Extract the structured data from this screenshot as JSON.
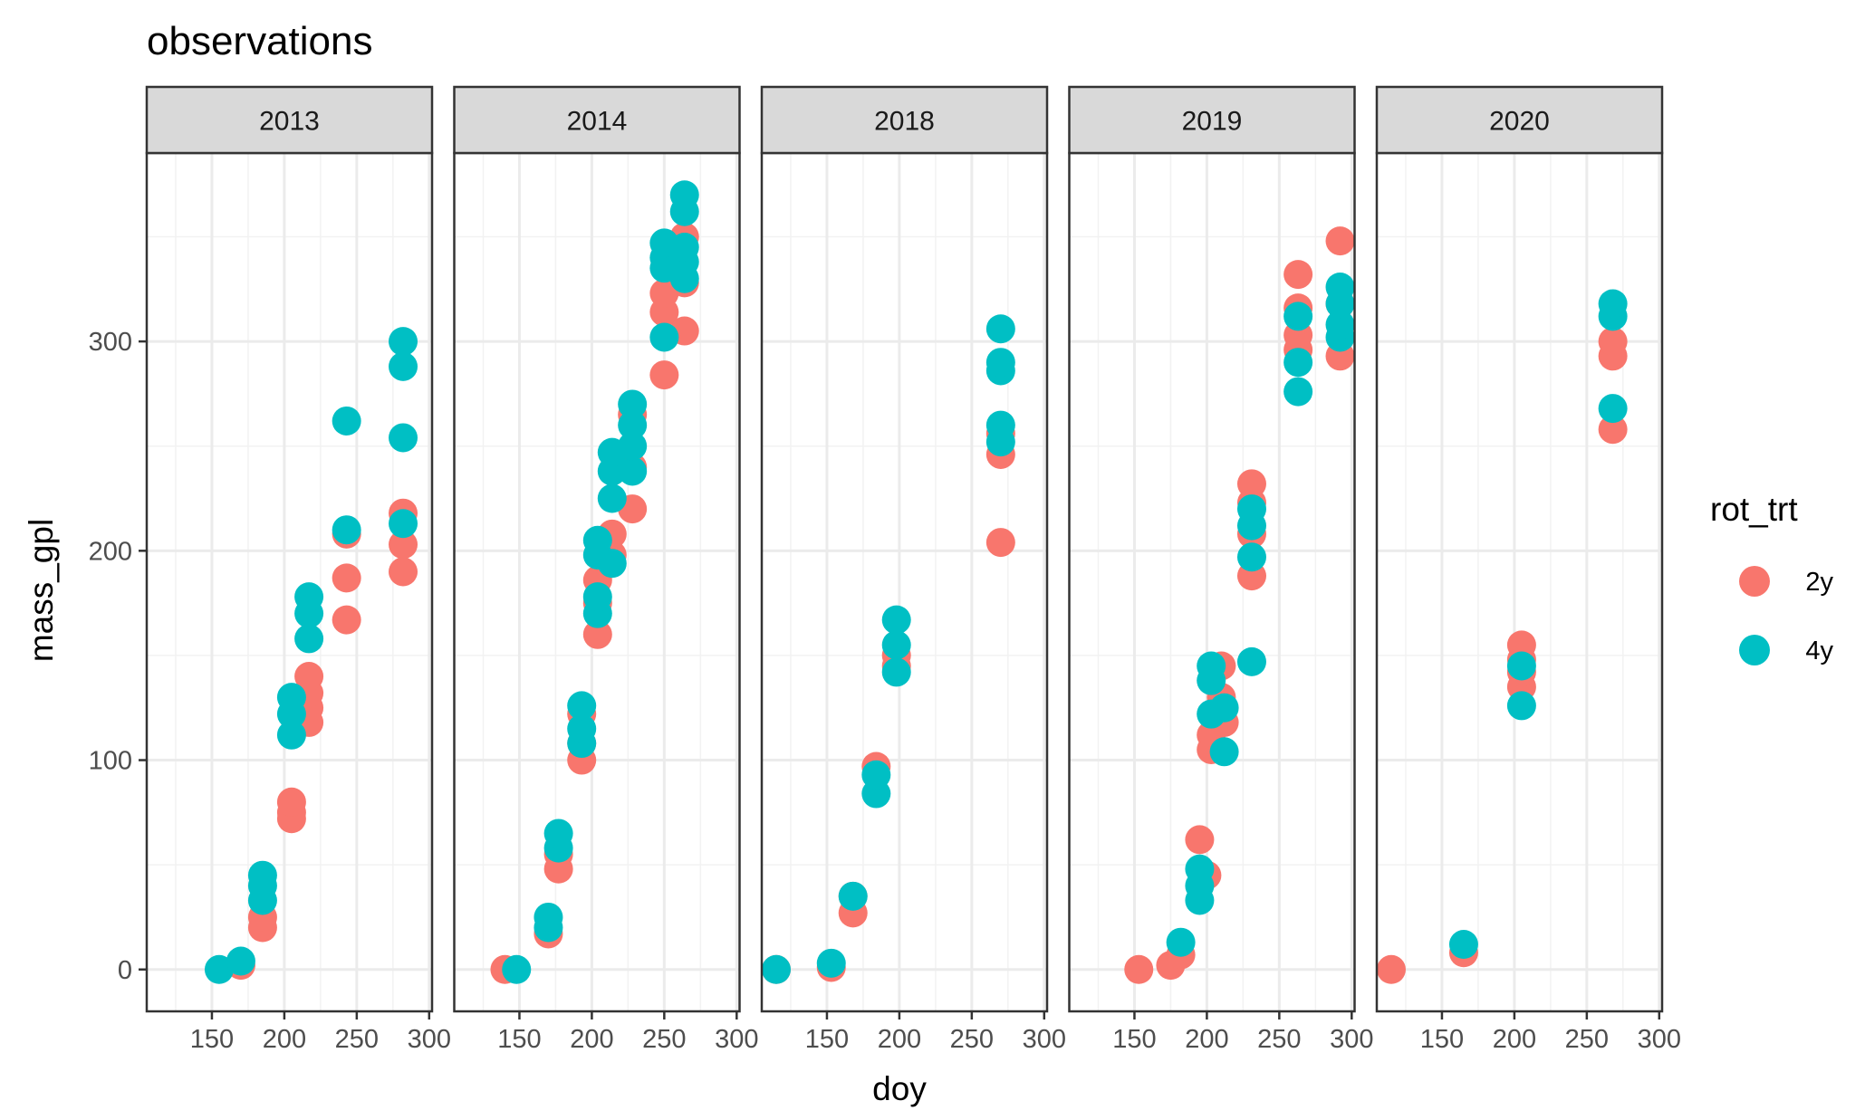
{
  "chart_data": {
    "type": "scatter",
    "title": "observations",
    "xlabel": "doy",
    "ylabel": "mass_gpl",
    "xlim": [
      105,
      302
    ],
    "ylim": [
      -20,
      390
    ],
    "x_ticks": [
      150,
      200,
      250,
      300
    ],
    "y_ticks": [
      0,
      100,
      200,
      300
    ],
    "grid": true,
    "legend": {
      "title": "rot_trt",
      "position": "right",
      "entries": [
        {
          "name": "2y",
          "color": "#F8766D"
        },
        {
          "name": "4y",
          "color": "#00BFC4"
        }
      ]
    },
    "panels": [
      {
        "label": "2013",
        "series": [
          {
            "name": "2y",
            "points": [
              [
                170,
                2
              ],
              [
                185,
                20
              ],
              [
                185,
                25
              ],
              [
                205,
                72
              ],
              [
                205,
                75
              ],
              [
                205,
                80
              ],
              [
                217,
                118
              ],
              [
                217,
                125
              ],
              [
                217,
                132
              ],
              [
                217,
                140
              ],
              [
                243,
                167
              ],
              [
                243,
                187
              ],
              [
                243,
                208
              ],
              [
                282,
                190
              ],
              [
                282,
                203
              ],
              [
                282,
                218
              ]
            ]
          },
          {
            "name": "4y",
            "points": [
              [
                155,
                0
              ],
              [
                170,
                4
              ],
              [
                185,
                33
              ],
              [
                185,
                40
              ],
              [
                185,
                45
              ],
              [
                205,
                112
              ],
              [
                205,
                122
              ],
              [
                205,
                130
              ],
              [
                217,
                158
              ],
              [
                217,
                170
              ],
              [
                217,
                178
              ],
              [
                243,
                210
              ],
              [
                243,
                262
              ],
              [
                282,
                213
              ],
              [
                282,
                254
              ],
              [
                282,
                288
              ],
              [
                282,
                300
              ]
            ]
          }
        ]
      },
      {
        "label": "2014",
        "series": [
          {
            "name": "2y",
            "points": [
              [
                140,
                0
              ],
              [
                170,
                17
              ],
              [
                177,
                48
              ],
              [
                177,
                55
              ],
              [
                193,
                100
              ],
              [
                193,
                108
              ],
              [
                193,
                122
              ],
              [
                204,
                160
              ],
              [
                204,
                175
              ],
              [
                204,
                186
              ],
              [
                214,
                198
              ],
              [
                214,
                208
              ],
              [
                228,
                220
              ],
              [
                228,
                240
              ],
              [
                228,
                265
              ],
              [
                250,
                284
              ],
              [
                250,
                314
              ],
              [
                250,
                323
              ],
              [
                264,
                305
              ],
              [
                264,
                328
              ],
              [
                264,
                350
              ]
            ]
          },
          {
            "name": "4y",
            "points": [
              [
                148,
                0
              ],
              [
                170,
                20
              ],
              [
                170,
                25
              ],
              [
                177,
                58
              ],
              [
                177,
                65
              ],
              [
                193,
                108
              ],
              [
                193,
                115
              ],
              [
                193,
                126
              ],
              [
                204,
                170
              ],
              [
                204,
                178
              ],
              [
                204,
                198
              ],
              [
                204,
                205
              ],
              [
                214,
                194
              ],
              [
                214,
                225
              ],
              [
                214,
                238
              ],
              [
                214,
                247
              ],
              [
                228,
                238
              ],
              [
                228,
                250
              ],
              [
                228,
                260
              ],
              [
                228,
                270
              ],
              [
                250,
                302
              ],
              [
                250,
                335
              ],
              [
                250,
                340
              ],
              [
                250,
                347
              ],
              [
                264,
                330
              ],
              [
                264,
                338
              ],
              [
                264,
                345
              ],
              [
                264,
                362
              ],
              [
                264,
                370
              ]
            ]
          }
        ]
      },
      {
        "label": "2018",
        "series": [
          {
            "name": "2y",
            "points": [
              [
                115,
                0
              ],
              [
                153,
                1
              ],
              [
                168,
                27
              ],
              [
                168,
                35
              ],
              [
                184,
                97
              ],
              [
                198,
                145
              ],
              [
                198,
                150
              ],
              [
                270,
                204
              ],
              [
                270,
                246
              ],
              [
                270,
                256
              ]
            ]
          },
          {
            "name": "4y",
            "points": [
              [
                115,
                0
              ],
              [
                153,
                3
              ],
              [
                168,
                35
              ],
              [
                184,
                84
              ],
              [
                184,
                93
              ],
              [
                198,
                142
              ],
              [
                198,
                155
              ],
              [
                198,
                167
              ],
              [
                270,
                252
              ],
              [
                270,
                260
              ],
              [
                270,
                286
              ],
              [
                270,
                290
              ],
              [
                270,
                306
              ]
            ]
          }
        ]
      },
      {
        "label": "2019",
        "series": [
          {
            "name": "2y",
            "points": [
              [
                153,
                0
              ],
              [
                175,
                2
              ],
              [
                182,
                7
              ],
              [
                195,
                62
              ],
              [
                200,
                45
              ],
              [
                203,
                105
              ],
              [
                203,
                112
              ],
              [
                210,
                130
              ],
              [
                210,
                145
              ],
              [
                212,
                118
              ],
              [
                231,
                188
              ],
              [
                231,
                208
              ],
              [
                231,
                223
              ],
              [
                231,
                232
              ],
              [
                263,
                296
              ],
              [
                263,
                303
              ],
              [
                263,
                316
              ],
              [
                263,
                332
              ],
              [
                292,
                293
              ],
              [
                292,
                318
              ],
              [
                292,
                348
              ]
            ]
          },
          {
            "name": "4y",
            "points": [
              [
                182,
                13
              ],
              [
                195,
                33
              ],
              [
                195,
                40
              ],
              [
                195,
                48
              ],
              [
                203,
                122
              ],
              [
                203,
                138
              ],
              [
                203,
                145
              ],
              [
                212,
                104
              ],
              [
                212,
                125
              ],
              [
                231,
                147
              ],
              [
                231,
                197
              ],
              [
                231,
                212
              ],
              [
                231,
                220
              ],
              [
                263,
                276
              ],
              [
                263,
                290
              ],
              [
                263,
                312
              ],
              [
                292,
                302
              ],
              [
                292,
                308
              ],
              [
                292,
                318
              ],
              [
                292,
                326
              ]
            ]
          }
        ]
      },
      {
        "label": "2020",
        "series": [
          {
            "name": "2y",
            "points": [
              [
                115,
                0
              ],
              [
                165,
                8
              ],
              [
                205,
                135
              ],
              [
                205,
                142
              ],
              [
                205,
                148
              ],
              [
                205,
                155
              ],
              [
                268,
                258
              ],
              [
                268,
                293
              ],
              [
                268,
                300
              ]
            ]
          },
          {
            "name": "4y",
            "points": [
              [
                165,
                12
              ],
              [
                205,
                126
              ],
              [
                205,
                145
              ],
              [
                268,
                268
              ],
              [
                268,
                312
              ],
              [
                268,
                318
              ]
            ]
          }
        ]
      }
    ]
  }
}
